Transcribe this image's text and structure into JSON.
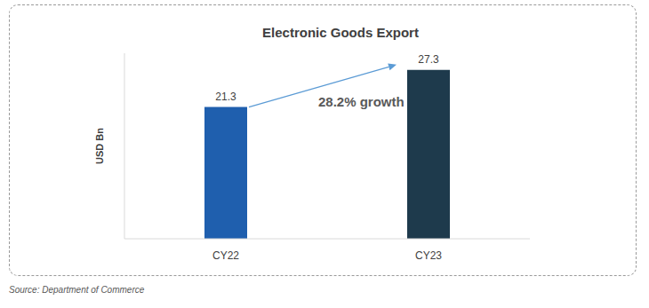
{
  "chart_data": {
    "type": "bar",
    "title": "Electronic Goods Export",
    "y_label": "USD Bn",
    "categories": [
      "CY22",
      "CY23"
    ],
    "values": [
      21.3,
      27.3
    ],
    "colors": [
      "#1f5fae",
      "#1e3a4c"
    ],
    "ylim": [
      0,
      30
    ],
    "data_labels": true,
    "tick_labels": "x",
    "grid": false,
    "annotation": "28.2% growth",
    "source": "Source: Department of Commerce"
  }
}
